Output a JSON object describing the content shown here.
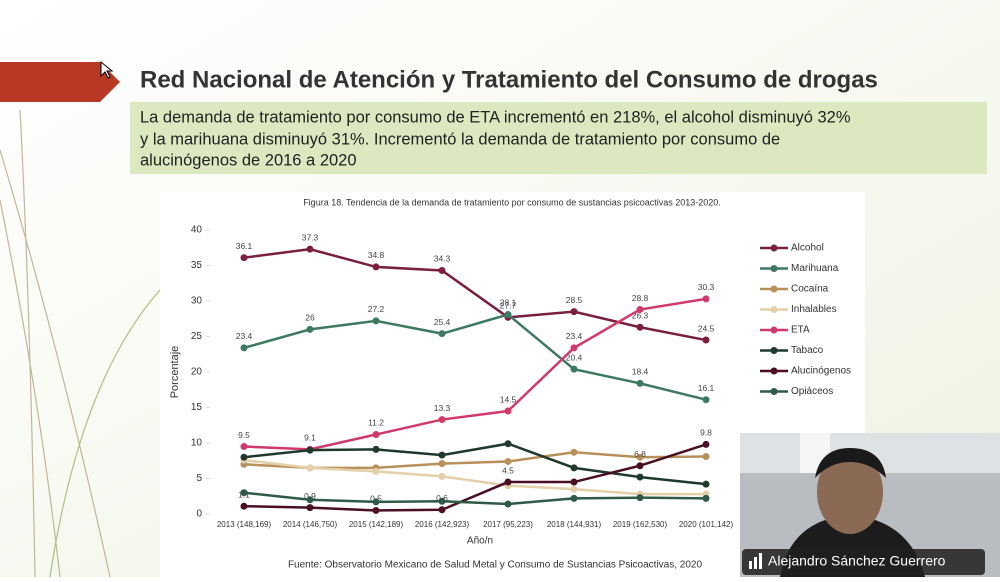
{
  "slide": {
    "title": "Red Nacional de Atención y Tratamiento del Consumo de drogas",
    "text": [
      "La demanda de tratamiento por consumo de ETA incrementó en 218%, el alcohol disminuyó 32%",
      "y la marihuana disminuyó 31%. Incrementó la demanda de tratamiento por consumo de",
      "alucinógenos de 2016 a 2020"
    ]
  },
  "call": {
    "participant": "Alejandro Sánchez Guerrero"
  },
  "chart_data": {
    "type": "line",
    "title": "Figura 18.  Tendencia de la demanda de tratamiento por consumo de sustancias psicoactivas 2013-2020.",
    "xlabel": "Año/n",
    "ylabel": "Porcentaje",
    "source": "Fuente: Observatorio Mexicano de Salud Metal y Consumo de Sustancias Psicoactivas, 2020",
    "categories": [
      "2013 (148,169)",
      "2014 (146,750)",
      "2015 (142,189)",
      "2016 (142,923)",
      "2017 (95,223)",
      "2018 (144,931)",
      "2019 (162,530)",
      "2020 (101,142)"
    ],
    "ylim": [
      0,
      40
    ],
    "yticks": [
      0,
      5,
      10,
      15,
      20,
      25,
      30,
      35,
      40
    ],
    "legend": "right",
    "series": [
      {
        "name": "Alcohol",
        "color": "#7a1f3d",
        "values": [
          36.1,
          37.3,
          34.8,
          34.3,
          27.7,
          28.5,
          26.3,
          24.5
        ],
        "value_labels": [
          "36.1",
          "37.3",
          "34.8",
          "34.3",
          "27.7",
          "28.5",
          "26.3",
          "24.5"
        ]
      },
      {
        "name": "Marihuana",
        "color": "#3e7a62",
        "values": [
          23.4,
          26,
          27.2,
          25.4,
          28.1,
          20.4,
          18.4,
          16.1
        ],
        "value_labels": [
          "23.4",
          "26",
          "27.2",
          "25.4",
          "28.1",
          "20.4",
          "18.4",
          "16.1"
        ]
      },
      {
        "name": "Cocaína",
        "color": "#b8905a",
        "values": [
          7.0,
          6.5,
          6.5,
          7.1,
          7.4,
          8.7,
          8.0,
          8.1
        ]
      },
      {
        "name": "Inhalables",
        "color": "#e3cfa8",
        "values": [
          7.6,
          6.5,
          6.0,
          5.3,
          4.0,
          3.5,
          2.8,
          2.8
        ]
      },
      {
        "name": "ETA",
        "color": "#d0396a",
        "values": [
          9.5,
          9.1,
          11.2,
          13.3,
          14.5,
          23.4,
          28.8,
          30.3
        ],
        "value_labels": [
          "9.5",
          "9.1",
          "11.2",
          "13.3",
          "14.5",
          "23.4",
          "28.8",
          "30.3"
        ]
      },
      {
        "name": "Tabaco",
        "color": "#1f3a2c",
        "values": [
          8.0,
          9.0,
          9.1,
          8.3,
          9.9,
          6.5,
          5.2,
          4.2
        ]
      },
      {
        "name": "Alucinógenos",
        "color": "#4a0f22",
        "values": [
          1.1,
          0.9,
          0.5,
          0.6,
          4.5,
          4.5,
          6.8,
          9.8
        ],
        "value_labels": [
          "1.1",
          "0.9",
          "0.5",
          "0.6",
          "4.5",
          null,
          "6.8",
          "9.8"
        ]
      },
      {
        "name": "Opiáceos",
        "color": "#2f5a48",
        "values": [
          3.0,
          2.0,
          1.7,
          1.8,
          1.4,
          2.2,
          2.3,
          2.2
        ]
      }
    ]
  }
}
